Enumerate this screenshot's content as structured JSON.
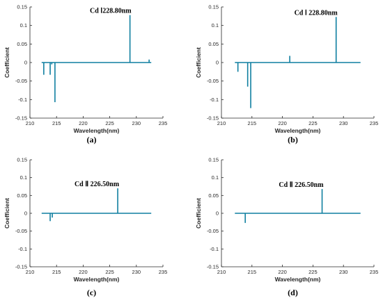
{
  "chart_data": [
    {
      "type": "line",
      "panel_label": "(a)",
      "xlabel": "Wavelength(nm)",
      "ylabel": "Coefficient",
      "xlim": [
        210,
        235
      ],
      "ylim": [
        -0.15,
        0.15
      ],
      "xticks": [
        "210",
        "215",
        "220",
        "225",
        "230",
        "235"
      ],
      "yticks": [
        "-0.15",
        "-0.1",
        "-0.05",
        "0",
        "0.05",
        "0.1",
        "0.15"
      ],
      "baseline": {
        "x": [
          212.2,
          232.8
        ],
        "y": 0
      },
      "spikes": [
        {
          "x": 212.6,
          "y": -0.033
        },
        {
          "x": 213.8,
          "y": -0.033
        },
        {
          "x": 214.1,
          "y": -0.005
        },
        {
          "x": 214.7,
          "y": -0.107
        },
        {
          "x": 228.8,
          "y": 0.128
        },
        {
          "x": 232.4,
          "y": 0.008
        }
      ],
      "annotation": {
        "text": "Cd Ⅰ228.80nm",
        "x": 228.8,
        "y": 0.128
      },
      "color": "#0f7fa0"
    },
    {
      "type": "line",
      "panel_label": "(b)",
      "xlabel": "Wavelength(nm)",
      "ylabel": "Coefficient",
      "xlim": [
        210,
        235
      ],
      "ylim": [
        -0.15,
        0.15
      ],
      "xticks": [
        "210",
        "215",
        "220",
        "225",
        "230",
        "235"
      ],
      "yticks": [
        "-0.15",
        "-0.1",
        "-0.05",
        "0",
        "0.05",
        "0.1",
        "0.15"
      ],
      "baseline": {
        "x": [
          212.2,
          232.8
        ],
        "y": 0
      },
      "spikes": [
        {
          "x": 212.7,
          "y": -0.025
        },
        {
          "x": 214.3,
          "y": -0.065
        },
        {
          "x": 214.8,
          "y": -0.123
        },
        {
          "x": 221.2,
          "y": 0.018
        },
        {
          "x": 228.8,
          "y": 0.123
        }
      ],
      "annotation": {
        "text": "Cd Ⅰ 228.80nm",
        "x": 228.8,
        "y": 0.123
      },
      "color": "#0f7fa0"
    },
    {
      "type": "line",
      "panel_label": "(c)",
      "xlabel": "Wavelength(nm)",
      "ylabel": "Coefficient",
      "xlim": [
        210,
        235
      ],
      "ylim": [
        -0.15,
        0.15
      ],
      "xticks": [
        "210",
        "215",
        "220",
        "225",
        "230",
        "235"
      ],
      "yticks": [
        "-0.15",
        "-0.1",
        "-0.05",
        "0",
        "0.05",
        "0.1",
        "0.15"
      ],
      "baseline": {
        "x": [
          212.2,
          232.8
        ],
        "y": 0
      },
      "spikes": [
        {
          "x": 213.8,
          "y": -0.022
        },
        {
          "x": 214.2,
          "y": -0.012
        },
        {
          "x": 226.5,
          "y": 0.07
        }
      ],
      "annotation": {
        "text": "Cd Ⅱ 226.50nm",
        "x": 226.5,
        "y": 0.07
      },
      "color": "#0f7fa0"
    },
    {
      "type": "line",
      "panel_label": "(d)",
      "xlabel": "Wavelength(nm)",
      "ylabel": "Coefficient",
      "xlim": [
        210,
        235
      ],
      "ylim": [
        -0.15,
        0.15
      ],
      "xticks": [
        "210",
        "215",
        "220",
        "225",
        "230",
        "235"
      ],
      "yticks": [
        "-0.15",
        "-0.1",
        "-0.05",
        "0",
        "0.05",
        "0.1",
        "0.15"
      ],
      "baseline": {
        "x": [
          212.2,
          232.8
        ],
        "y": 0
      },
      "spikes": [
        {
          "x": 213.9,
          "y": -0.027
        },
        {
          "x": 226.5,
          "y": 0.068
        }
      ],
      "annotation": {
        "text": "Cd Ⅱ 226.50nm",
        "x": 226.5,
        "y": 0.068
      },
      "color": "#0f7fa0"
    }
  ]
}
